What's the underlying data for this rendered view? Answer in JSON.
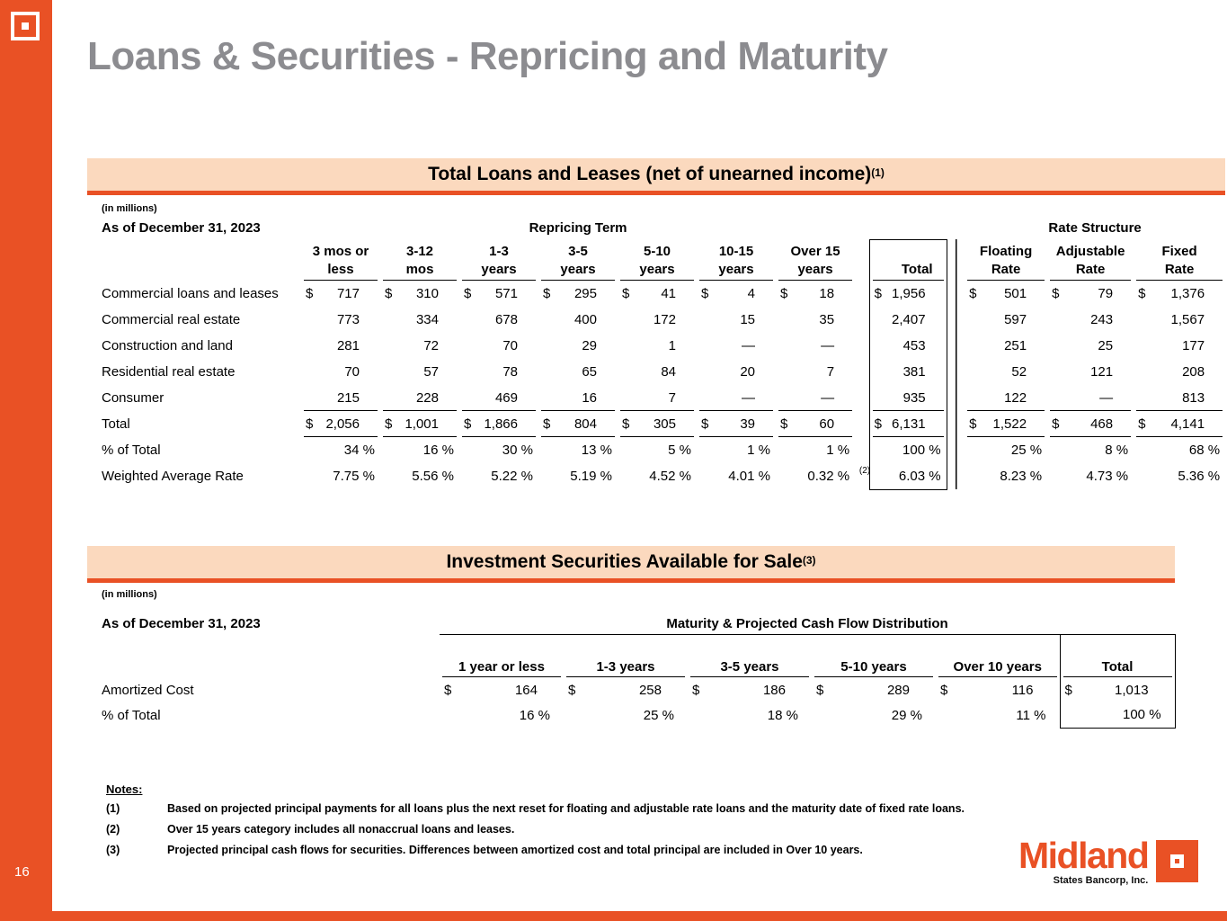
{
  "sidebar": {
    "page_number": "16"
  },
  "title": "Loans & Securities - Repricing and Maturity",
  "loans": {
    "band_title": "Total Loans and Leases (net of unearned income)",
    "band_note": "(1)",
    "in_millions": "(in millions)",
    "as_of": "As of December 31, 2023",
    "group_repricing": "Repricing Term",
    "group_rate": "Rate Structure",
    "columns": [
      {
        "l1": "3 mos or",
        "l2": "less"
      },
      {
        "l1": "3-12",
        "l2": "mos"
      },
      {
        "l1": "1-3",
        "l2": "years"
      },
      {
        "l1": "3-5",
        "l2": "years"
      },
      {
        "l1": "5-10",
        "l2": "years"
      },
      {
        "l1": "10-15",
        "l2": "years"
      },
      {
        "l1": "Over 15",
        "l2": "years"
      },
      {
        "l1": "",
        "l2": "Total"
      },
      {
        "l1": "Floating",
        "l2": "Rate"
      },
      {
        "l1": "Adjustable",
        "l2": "Rate"
      },
      {
        "l1": "Fixed",
        "l2": "Rate"
      }
    ],
    "rows": [
      {
        "label": "Commercial loans and leases",
        "type": "money",
        "cells": [
          [
            "$",
            "717"
          ],
          [
            "$",
            "310"
          ],
          [
            "$",
            "571"
          ],
          [
            "$",
            "295"
          ],
          [
            "$",
            "41"
          ],
          [
            "$",
            "4"
          ],
          [
            "$",
            "18"
          ],
          [
            "$",
            "1,956"
          ],
          [
            "$",
            "501"
          ],
          [
            "$",
            "79"
          ],
          [
            "$",
            "1,376"
          ]
        ]
      },
      {
        "label": "Commercial real estate",
        "type": "money",
        "cells": [
          [
            "",
            "773"
          ],
          [
            "",
            "334"
          ],
          [
            "",
            "678"
          ],
          [
            "",
            "400"
          ],
          [
            "",
            "172"
          ],
          [
            "",
            "15"
          ],
          [
            "",
            "35"
          ],
          [
            "",
            "2,407"
          ],
          [
            "",
            "597"
          ],
          [
            "",
            "243"
          ],
          [
            "",
            "1,567"
          ]
        ]
      },
      {
        "label": "Construction and land",
        "type": "money",
        "cells": [
          [
            "",
            "281"
          ],
          [
            "",
            "72"
          ],
          [
            "",
            "70"
          ],
          [
            "",
            "29"
          ],
          [
            "",
            "1"
          ],
          [
            "",
            "—"
          ],
          [
            "",
            "—"
          ],
          [
            "",
            "453"
          ],
          [
            "",
            "251"
          ],
          [
            "",
            "25"
          ],
          [
            "",
            "177"
          ]
        ]
      },
      {
        "label": "Residential real estate",
        "type": "money",
        "cells": [
          [
            "",
            "70"
          ],
          [
            "",
            "57"
          ],
          [
            "",
            "78"
          ],
          [
            "",
            "65"
          ],
          [
            "",
            "84"
          ],
          [
            "",
            "20"
          ],
          [
            "",
            "7"
          ],
          [
            "",
            "381"
          ],
          [
            "",
            "52"
          ],
          [
            "",
            "121"
          ],
          [
            "",
            "208"
          ]
        ]
      },
      {
        "label": "Consumer",
        "type": "money",
        "section_end": true,
        "cells": [
          [
            "",
            "215"
          ],
          [
            "",
            "228"
          ],
          [
            "",
            "469"
          ],
          [
            "",
            "16"
          ],
          [
            "",
            "7"
          ],
          [
            "",
            "—"
          ],
          [
            "",
            "—"
          ],
          [
            "",
            "935"
          ],
          [
            "",
            "122"
          ],
          [
            "",
            "—"
          ],
          [
            "",
            "813"
          ]
        ]
      },
      {
        "label": "Total",
        "type": "money",
        "total_row": true,
        "cells": [
          [
            "$",
            "2,056"
          ],
          [
            "$",
            "1,001"
          ],
          [
            "$",
            "1,866"
          ],
          [
            "$",
            "804"
          ],
          [
            "$",
            "305"
          ],
          [
            "$",
            "39"
          ],
          [
            "$",
            "60"
          ],
          [
            "$",
            "6,131"
          ],
          [
            "$",
            "1,522"
          ],
          [
            "$",
            "468"
          ],
          [
            "$",
            "4,141"
          ]
        ]
      },
      {
        "label": "% of Total",
        "type": "pct",
        "cells": [
          [
            "",
            "34 %"
          ],
          [
            "",
            "16 %"
          ],
          [
            "",
            "30 %"
          ],
          [
            "",
            "13 %"
          ],
          [
            "",
            "5 %"
          ],
          [
            "",
            "1 %"
          ],
          [
            "",
            "1 %"
          ],
          [
            "",
            "100 %"
          ],
          [
            "",
            "25 %"
          ],
          [
            "",
            "8 %"
          ],
          [
            "",
            "68 %"
          ]
        ]
      },
      {
        "label": "Weighted Average Rate",
        "type": "pct",
        "cells": [
          [
            "",
            "7.75 %"
          ],
          [
            "",
            "5.56 %"
          ],
          [
            "",
            "5.22 %"
          ],
          [
            "",
            "5.19 %"
          ],
          [
            "",
            "4.52 %"
          ],
          [
            "",
            "4.01 %"
          ],
          [
            "",
            "0.32 %",
            "(2)"
          ],
          [
            "",
            "6.03 %"
          ],
          [
            "",
            "8.23 %"
          ],
          [
            "",
            "4.73 %"
          ],
          [
            "",
            "5.36 %"
          ]
        ]
      }
    ]
  },
  "securities": {
    "band_title": "Investment Securities Available for Sale",
    "band_note": "(3)",
    "in_millions": "(in millions)",
    "as_of": "As of December 31, 2023",
    "group_header": "Maturity & Projected Cash Flow Distribution",
    "columns": [
      "1 year or less",
      "1-3 years",
      "3-5 years",
      "5-10 years",
      "Over 10 years",
      "Total"
    ],
    "rows": [
      {
        "label": "Amortized Cost",
        "type": "money",
        "cells": [
          [
            "$",
            "164"
          ],
          [
            "$",
            "258"
          ],
          [
            "$",
            "186"
          ],
          [
            "$",
            "289"
          ],
          [
            "$",
            "116"
          ],
          [
            "$",
            "1,013"
          ]
        ]
      },
      {
        "label": "% of Total",
        "type": "pct",
        "cells": [
          [
            "",
            "16 %"
          ],
          [
            "",
            "25 %"
          ],
          [
            "",
            "18 %"
          ],
          [
            "",
            "29 %"
          ],
          [
            "",
            "11 %"
          ],
          [
            "",
            "100 %"
          ]
        ]
      }
    ]
  },
  "notes": {
    "heading": "Notes:",
    "items": [
      {
        "num": "(1)",
        "text": "Based on projected principal payments for all loans plus the next reset for floating and adjustable rate loans and the maturity date of fixed rate loans."
      },
      {
        "num": "(2)",
        "text": "Over 15 years category includes all nonaccrual loans and leases."
      },
      {
        "num": "(3)",
        "text": "Projected principal cash flows for securities.  Differences between amortized cost and total principal are included in Over 10 years."
      }
    ]
  },
  "logo": {
    "name": "Midland",
    "sub": "States Bancorp, Inc."
  },
  "colors": {
    "orange": "#E95125",
    "peach": "#FBD9BE",
    "title_gray": "#8C8C90"
  }
}
